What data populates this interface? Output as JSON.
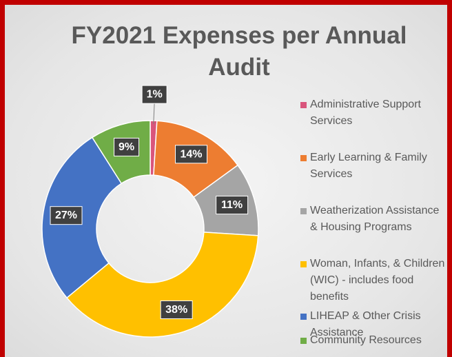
{
  "chart_data": {
    "type": "donut",
    "title": "FY2021 Expenses per Annual Audit",
    "categories": [
      "Administrative Support Services",
      "Early Learning & Family Services",
      "Weatherization Assistance & Housing Programs",
      "Woman, Infants, & Children (WIC) - includes food benefits",
      "LIHEAP & Other Crisis Assistance",
      "Community Resources"
    ],
    "values": [
      1,
      14,
      11,
      38,
      27,
      9
    ],
    "value_labels": [
      "1%",
      "14%",
      "11%",
      "38%",
      "27%",
      "9%"
    ],
    "colors": [
      "#d9557c",
      "#ed7d31",
      "#a5a5a5",
      "#ffc000",
      "#4472c4",
      "#70ad47"
    ],
    "legend": "right"
  }
}
